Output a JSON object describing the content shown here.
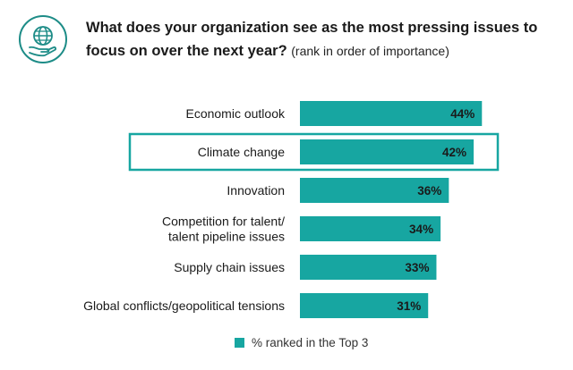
{
  "header": {
    "title": "What does your organization see as the most pressing issues to focus on over the next year?",
    "subtitle": "(rank in order of importance)",
    "icon": "globe-in-hand-icon"
  },
  "colors": {
    "bar": "#17a6a1",
    "highlight_border": "#17a6a1",
    "icon": "#1d8c87"
  },
  "chart_data": {
    "type": "bar",
    "orientation": "horizontal",
    "categories": [
      [
        "Economic outlook"
      ],
      [
        "Climate change"
      ],
      [
        "Innovation"
      ],
      [
        "Competition for talent/",
        "talent pipeline issues"
      ],
      [
        "Supply chain issues"
      ],
      [
        "Global conflicts/geopolitical tensions"
      ]
    ],
    "series": [
      {
        "name": "% ranked in the Top 3",
        "values": [
          44,
          42,
          36,
          34,
          33,
          31
        ]
      }
    ],
    "value_format": "{v}%",
    "highlighted_category_index": 1,
    "legend_position": "bottom"
  }
}
